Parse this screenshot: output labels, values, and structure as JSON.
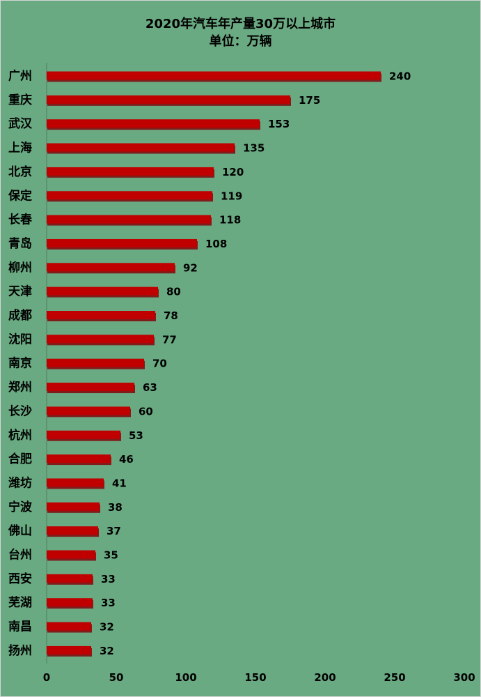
{
  "chart_data": {
    "type": "bar",
    "orientation": "horizontal",
    "title": "2020年汽车年产量30万以上城市",
    "subtitle": "单位：万辆",
    "categories": [
      "广州",
      "重庆",
      "武汉",
      "上海",
      "北京",
      "保定",
      "长春",
      "青岛",
      "柳州",
      "天津",
      "成都",
      "沈阳",
      "南京",
      "郑州",
      "长沙",
      "杭州",
      "合肥",
      "潍坊",
      "宁波",
      "佛山",
      "台州",
      "西安",
      "芜湖",
      "南昌",
      "扬州"
    ],
    "values": [
      240,
      175,
      153,
      135,
      120,
      119,
      118,
      108,
      92,
      80,
      78,
      77,
      70,
      63,
      60,
      53,
      46,
      41,
      38,
      37,
      35,
      33,
      33,
      32,
      32
    ],
    "xlim": [
      0,
      300
    ],
    "xticks": [
      0,
      50,
      100,
      150,
      200,
      250,
      300
    ],
    "grid": false,
    "legend": "none",
    "bar_color": "#c00000",
    "bar_shadow_color": "#7f1d1d",
    "background_color": "#6aaa82"
  }
}
